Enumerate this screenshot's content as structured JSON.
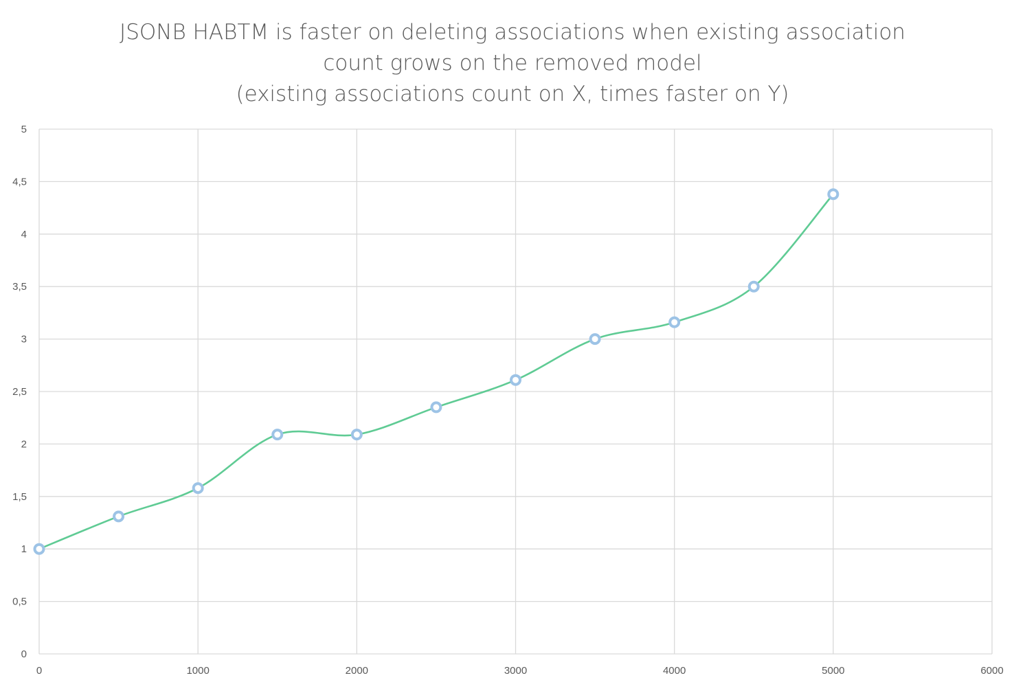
{
  "chart_data": {
    "type": "line",
    "title_lines": [
      "JSONB HABTM is faster on deleting associations when existing association",
      "count grows on the removed model",
      "(existing associations count on X, times faster on Y)"
    ],
    "xlabel": "",
    "ylabel": "",
    "xlim": [
      0,
      6000
    ],
    "ylim": [
      0,
      5
    ],
    "x_ticks": [
      0,
      1000,
      2000,
      3000,
      4000,
      5000,
      6000
    ],
    "x_tick_labels": [
      "0",
      "1000",
      "2000",
      "3000",
      "4000",
      "5000",
      "6000"
    ],
    "y_ticks": [
      0,
      0.5,
      1,
      1.5,
      2,
      2.5,
      3,
      3.5,
      4,
      4.5,
      5
    ],
    "y_tick_labels": [
      "0",
      "0,5",
      "1",
      "1,5",
      "2",
      "2,5",
      "3",
      "3,5",
      "4",
      "4,5",
      "5"
    ],
    "grid": true,
    "smooth": true,
    "series": [
      {
        "x": [
          0,
          500,
          1000,
          1500,
          2000,
          2500,
          3000,
          3500,
          4000,
          4500,
          5000
        ],
        "values": [
          1.0,
          1.31,
          1.58,
          2.09,
          2.09,
          2.35,
          2.61,
          3.0,
          3.16,
          3.5,
          4.38
        ],
        "line_color": "#5fcb94",
        "marker_color": "#9dc3e6"
      }
    ]
  }
}
